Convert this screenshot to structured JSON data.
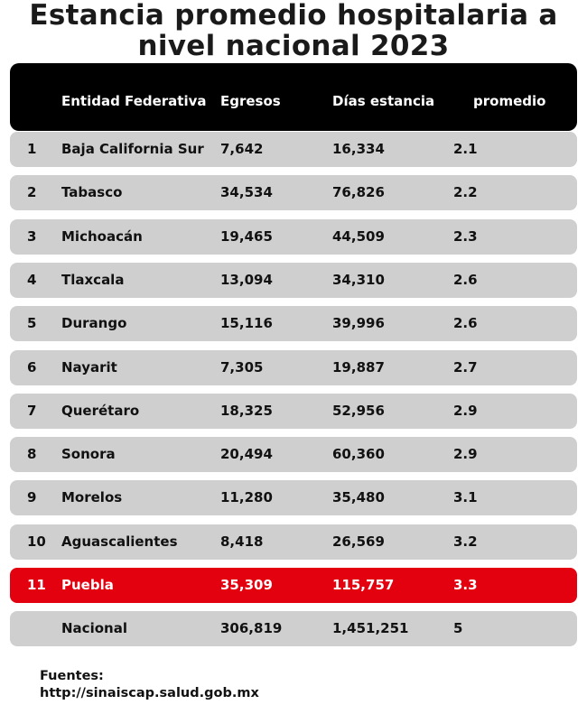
{
  "title_lines": [
    "Estancia promedio hospitalaria a",
    "nivel nacional 2023"
  ],
  "chart_data": {
    "type": "table",
    "title": "Estancia promedio hospitalaria a nivel nacional 2023",
    "columns": [
      "",
      "Entidad Federativa",
      "Egresos",
      "Días estancia",
      "promedio"
    ],
    "rows": [
      {
        "rank": "1",
        "entidad": "Baja California Sur",
        "egresos": "7,642",
        "dias": "16,334",
        "promedio": "2.1"
      },
      {
        "rank": "2",
        "entidad": "Tabasco",
        "egresos": "34,534",
        "dias": "76,826",
        "promedio": "2.2"
      },
      {
        "rank": "3",
        "entidad": "Michoacán",
        "egresos": "19,465",
        "dias": "44,509",
        "promedio": "2.3"
      },
      {
        "rank": "4",
        "entidad": "Tlaxcala",
        "egresos": "13,094",
        "dias": "34,310",
        "promedio": "2.6"
      },
      {
        "rank": "5",
        "entidad": "Durango",
        "egresos": "15,116",
        "dias": "39,996",
        "promedio": "2.6"
      },
      {
        "rank": "6",
        "entidad": "Nayarit",
        "egresos": "7,305",
        "dias": "19,887",
        "promedio": "2.7"
      },
      {
        "rank": "7",
        "entidad": "Querétaro",
        "egresos": "18,325",
        "dias": "52,956",
        "promedio": "2.9"
      },
      {
        "rank": "8",
        "entidad": "Sonora",
        "egresos": "20,494",
        "dias": "60,360",
        "promedio": "2.9"
      },
      {
        "rank": "9",
        "entidad": "Morelos",
        "egresos": "11,280",
        "dias": "35,480",
        "promedio": "3.1"
      },
      {
        "rank": "10",
        "entidad": "Aguascalientes",
        "egresos": "8,418",
        "dias": "26,569",
        "promedio": "3.2"
      },
      {
        "rank": "11",
        "entidad": "Puebla",
        "egresos": "35,309",
        "dias": "115,757",
        "promedio": "3.3",
        "highlight": true
      },
      {
        "rank": "",
        "entidad": "Nacional",
        "egresos": "306,819",
        "dias": "1,451,251",
        "promedio": "5"
      }
    ],
    "highlight_color": "#e3000f",
    "row_color": "#cfcfcf",
    "header_color": "#000000"
  },
  "sources": {
    "label": "Fuentes:",
    "url": "http://sinaiscap.salud.gob.mx"
  }
}
